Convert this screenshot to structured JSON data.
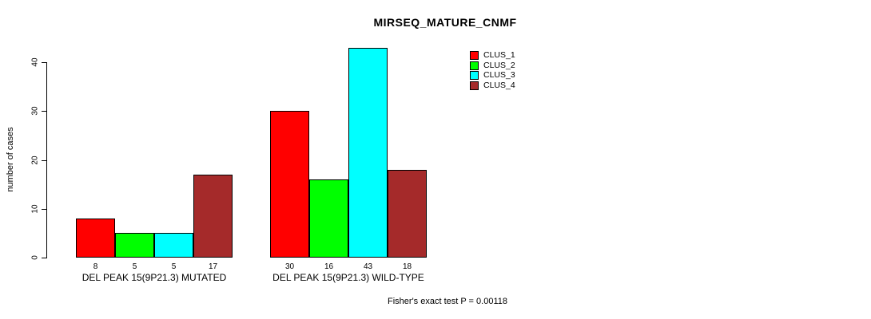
{
  "window": {
    "background": "#ffffff"
  },
  "chart_data": {
    "type": "bar",
    "title": "MIRSEQ_MATURE_CNMF",
    "ylabel": "number of cases",
    "xlabel": "",
    "ylim": [
      0,
      40
    ],
    "yticks": [
      0,
      10,
      20,
      30,
      40
    ],
    "grid": false,
    "legend_position": "top-right",
    "categories": [
      "DEL PEAK 15(9P21.3) MUTATED",
      "DEL PEAK 15(9P21.3) WILD-TYPE"
    ],
    "series": [
      {
        "name": "CLUS_1",
        "color": "#ff0000",
        "values": [
          8,
          30
        ]
      },
      {
        "name": "CLUS_2",
        "color": "#00ff00",
        "values": [
          5,
          16
        ]
      },
      {
        "name": "CLUS_3",
        "color": "#00ffff",
        "values": [
          5,
          43
        ]
      },
      {
        "name": "CLUS_4",
        "color": "#a52a2a",
        "values": [
          17,
          18
        ]
      }
    ],
    "bar_value_labels": [
      [
        8,
        5,
        5,
        17
      ],
      [
        30,
        16,
        43,
        18
      ]
    ],
    "bar_border_color": "#000000",
    "axis_color": "#000000",
    "text_color": "#000000"
  },
  "footer": {
    "text": "Fisher's exact test P = 0.00118"
  }
}
